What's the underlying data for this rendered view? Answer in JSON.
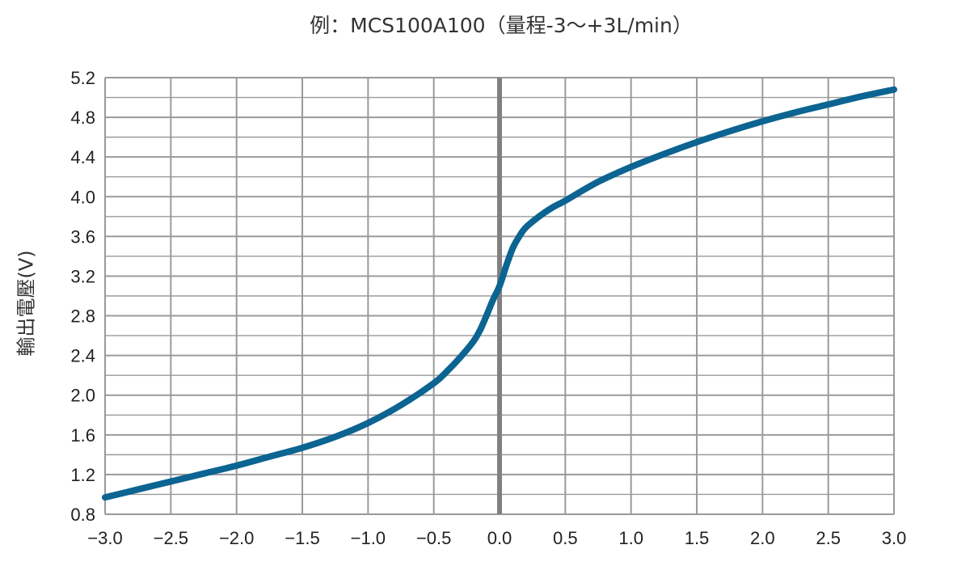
{
  "chart_data": {
    "type": "line",
    "title": "例：MCS100A100（量程-3～+3L/min）",
    "xlabel": "",
    "ylabel": "輸出電壓(V)",
    "xlim": [
      -3.0,
      3.0
    ],
    "ylim": [
      0.8,
      5.2
    ],
    "x_tick_labels": [
      "−3.0",
      "−2.5",
      "−2.0",
      "−1.5",
      "−1.0",
      "−0.5",
      "0.0",
      "0.5",
      "1.0",
      "1.5",
      "2.0",
      "2.5",
      "3.0"
    ],
    "y_tick_labels": [
      "0.8",
      "1.2",
      "1.6",
      "2.0",
      "2.4",
      "2.8",
      "3.2",
      "3.6",
      "4.0",
      "4.4",
      "4.8",
      "5.2"
    ],
    "grid": true,
    "series": [
      {
        "color": "#0b6491",
        "x": [
          -3.0,
          -2.75,
          -2.5,
          -2.25,
          -2.0,
          -1.75,
          -1.5,
          -1.25,
          -1.0,
          -0.75,
          -0.5,
          -0.4,
          -0.3,
          -0.2,
          -0.15,
          -0.1,
          -0.05,
          0.0,
          0.05,
          0.1,
          0.15,
          0.2,
          0.3,
          0.4,
          0.5,
          0.75,
          1.0,
          1.25,
          1.5,
          1.75,
          2.0,
          2.25,
          2.5,
          2.75,
          3.0
        ],
        "y": [
          0.97,
          1.05,
          1.13,
          1.21,
          1.29,
          1.38,
          1.47,
          1.58,
          1.72,
          1.9,
          2.12,
          2.24,
          2.38,
          2.54,
          2.65,
          2.8,
          2.96,
          3.1,
          3.3,
          3.48,
          3.6,
          3.69,
          3.8,
          3.89,
          3.96,
          4.15,
          4.3,
          4.43,
          4.55,
          4.66,
          4.76,
          4.85,
          4.93,
          5.01,
          5.08
        ]
      }
    ]
  }
}
